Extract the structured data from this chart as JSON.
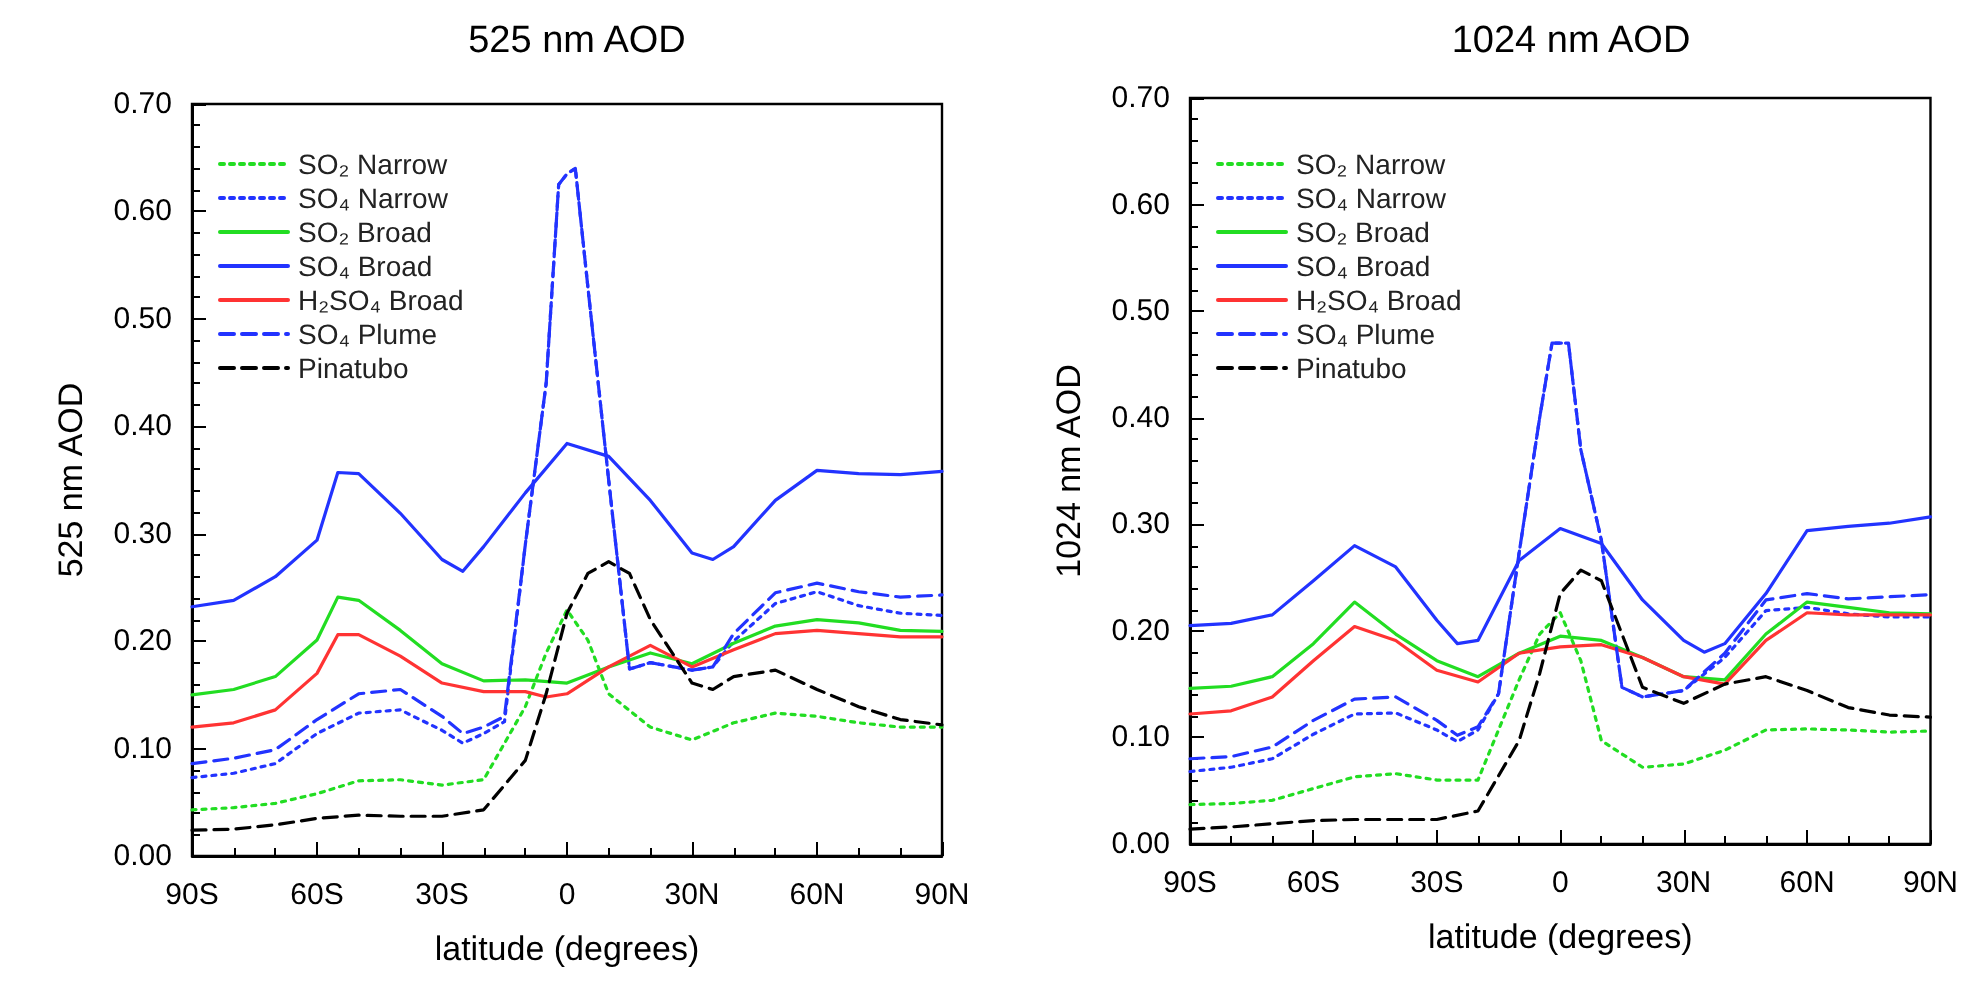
{
  "chart_data": [
    {
      "type": "line",
      "title": "525 nm AOD",
      "xlabel": "latitude (degrees)",
      "ylabel": "525 nm AOD",
      "xlim": [
        -90,
        90
      ],
      "xticks": [
        {
          "value": -90,
          "label": "90S"
        },
        {
          "value": -60,
          "label": "60S"
        },
        {
          "value": -30,
          "label": "30S"
        },
        {
          "value": 0,
          "label": "0"
        },
        {
          "value": 30,
          "label": "30N"
        },
        {
          "value": 60,
          "label": "60N"
        },
        {
          "value": 90,
          "label": "90N"
        }
      ],
      "ylim": [
        0,
        0.7
      ],
      "yticks": [
        {
          "value": 0,
          "label": "0.00"
        },
        {
          "value": 0.1,
          "label": "0.10"
        },
        {
          "value": 0.2,
          "label": "0.20"
        },
        {
          "value": 0.3,
          "label": "0.30"
        },
        {
          "value": 0.4,
          "label": "0.40"
        },
        {
          "value": 0.5,
          "label": "0.50"
        },
        {
          "value": 0.6,
          "label": "0.60"
        },
        {
          "value": 0.7,
          "label": "0.70"
        }
      ],
      "grid": false,
      "legend": "top left",
      "marker": "none",
      "series": [
        {
          "name": "SO₂ Narrow",
          "color": "#22dd22",
          "line_style": "dotted",
          "x": [
            -90,
            -80,
            -70,
            -60,
            -50,
            -40,
            -30,
            -20,
            -10,
            -5,
            0,
            5,
            10,
            20,
            30,
            40,
            50,
            60,
            70,
            80,
            90
          ],
          "values": [
            0.043,
            0.045,
            0.049,
            0.058,
            0.07,
            0.071,
            0.066,
            0.071,
            0.139,
            0.189,
            0.229,
            0.201,
            0.151,
            0.12,
            0.108,
            0.124,
            0.133,
            0.13,
            0.124,
            0.12,
            0.12
          ]
        },
        {
          "name": "SO₄ Narrow",
          "color": "#2233ff",
          "line_style": "dotted",
          "x": [
            -90,
            -80,
            -70,
            -60,
            -50,
            -40,
            -30,
            -25,
            -20,
            -15,
            -10,
            -5,
            -2,
            0,
            2,
            5,
            10,
            15,
            20,
            30,
            35,
            40,
            50,
            60,
            70,
            80,
            90
          ],
          "values": [
            0.073,
            0.077,
            0.086,
            0.114,
            0.133,
            0.136,
            0.117,
            0.105,
            0.114,
            0.125,
            0.29,
            0.44,
            0.625,
            0.635,
            0.64,
            0.53,
            0.35,
            0.174,
            0.18,
            0.173,
            0.176,
            0.2,
            0.235,
            0.246,
            0.233,
            0.226,
            0.224
          ]
        },
        {
          "name": "SO₂ Broad",
          "color": "#22dd22",
          "line_style": "solid",
          "x": [
            -90,
            -80,
            -70,
            -60,
            -55,
            -50,
            -40,
            -30,
            -20,
            -10,
            0,
            10,
            20,
            30,
            40,
            50,
            60,
            70,
            80,
            90
          ],
          "values": [
            0.15,
            0.155,
            0.167,
            0.201,
            0.241,
            0.238,
            0.21,
            0.179,
            0.163,
            0.164,
            0.161,
            0.176,
            0.189,
            0.179,
            0.198,
            0.214,
            0.22,
            0.217,
            0.21,
            0.209
          ]
        },
        {
          "name": "SO₄ Broad",
          "color": "#2233ff",
          "line_style": "solid",
          "x": [
            -90,
            -80,
            -70,
            -60,
            -55,
            -50,
            -40,
            -30,
            -25,
            -20,
            -10,
            0,
            10,
            20,
            30,
            35,
            40,
            50,
            60,
            70,
            80,
            90
          ],
          "values": [
            0.232,
            0.238,
            0.26,
            0.294,
            0.357,
            0.356,
            0.319,
            0.276,
            0.265,
            0.288,
            0.338,
            0.384,
            0.372,
            0.331,
            0.282,
            0.276,
            0.288,
            0.331,
            0.359,
            0.356,
            0.355,
            0.358
          ]
        },
        {
          "name": "H₂SO₄ Broad",
          "color": "#ff3333",
          "line_style": "solid",
          "x": [
            -90,
            -80,
            -70,
            -60,
            -55,
            -50,
            -40,
            -30,
            -20,
            -10,
            -5,
            0,
            10,
            20,
            30,
            40,
            50,
            60,
            70,
            80,
            90
          ],
          "values": [
            0.12,
            0.124,
            0.136,
            0.17,
            0.206,
            0.206,
            0.186,
            0.161,
            0.153,
            0.153,
            0.148,
            0.151,
            0.176,
            0.196,
            0.176,
            0.192,
            0.207,
            0.21,
            0.207,
            0.204,
            0.204
          ]
        },
        {
          "name": "SO₄ Plume",
          "color": "#2233ff",
          "line_style": "dashed",
          "x": [
            -90,
            -80,
            -70,
            -60,
            -50,
            -40,
            -30,
            -25,
            -20,
            -15,
            -10,
            -5,
            -2,
            0,
            2,
            5,
            10,
            15,
            20,
            30,
            35,
            40,
            50,
            60,
            70,
            80,
            90
          ],
          "values": [
            0.086,
            0.091,
            0.099,
            0.127,
            0.151,
            0.155,
            0.13,
            0.114,
            0.12,
            0.13,
            0.29,
            0.44,
            0.625,
            0.635,
            0.64,
            0.53,
            0.35,
            0.174,
            0.18,
            0.173,
            0.176,
            0.207,
            0.245,
            0.254,
            0.246,
            0.241,
            0.243
          ]
        },
        {
          "name": "Pinatubo",
          "color": "#000000",
          "line_style": "dashed",
          "x": [
            -90,
            -80,
            -70,
            -60,
            -50,
            -40,
            -30,
            -20,
            -10,
            -5,
            0,
            5,
            10,
            15,
            20,
            30,
            35,
            40,
            50,
            60,
            70,
            80,
            90
          ],
          "values": [
            0.024,
            0.025,
            0.029,
            0.035,
            0.038,
            0.037,
            0.037,
            0.043,
            0.089,
            0.151,
            0.226,
            0.263,
            0.274,
            0.263,
            0.22,
            0.161,
            0.155,
            0.167,
            0.173,
            0.155,
            0.139,
            0.127,
            0.122
          ]
        }
      ]
    },
    {
      "type": "line",
      "title": "1024 nm AOD",
      "xlabel": "latitude (degrees)",
      "ylabel": "1024 nm AOD",
      "xlim": [
        -90,
        90
      ],
      "xticks": [
        {
          "value": -90,
          "label": "90S"
        },
        {
          "value": -60,
          "label": "60S"
        },
        {
          "value": -30,
          "label": "30S"
        },
        {
          "value": 0,
          "label": "0"
        },
        {
          "value": 30,
          "label": "30N"
        },
        {
          "value": 60,
          "label": "60N"
        },
        {
          "value": 90,
          "label": "90N"
        }
      ],
      "ylim": [
        0,
        0.7
      ],
      "yticks": [
        {
          "value": 0,
          "label": "0.00"
        },
        {
          "value": 0.1,
          "label": "0.10"
        },
        {
          "value": 0.2,
          "label": "0.20"
        },
        {
          "value": 0.3,
          "label": "0.30"
        },
        {
          "value": 0.4,
          "label": "0.40"
        },
        {
          "value": 0.5,
          "label": "0.50"
        },
        {
          "value": 0.6,
          "label": "0.60"
        },
        {
          "value": 0.7,
          "label": "0.70"
        }
      ],
      "grid": false,
      "legend": "top left",
      "marker": "none",
      "series": [
        {
          "name": "SO₂ Narrow",
          "color": "#22dd22",
          "line_style": "dotted",
          "x": [
            -90,
            -80,
            -70,
            -60,
            -50,
            -40,
            -30,
            -20,
            -10,
            -5,
            0,
            5,
            10,
            20,
            30,
            40,
            50,
            60,
            70,
            80,
            90
          ],
          "values": [
            0.037,
            0.038,
            0.041,
            0.052,
            0.063,
            0.066,
            0.06,
            0.06,
            0.154,
            0.197,
            0.217,
            0.172,
            0.097,
            0.072,
            0.075,
            0.088,
            0.107,
            0.108,
            0.107,
            0.105,
            0.106
          ]
        },
        {
          "name": "SO₄ Narrow",
          "color": "#2233ff",
          "line_style": "dotted",
          "x": [
            -90,
            -80,
            -70,
            -60,
            -50,
            -40,
            -30,
            -25,
            -20,
            -15,
            -10,
            -5,
            -2,
            0,
            2,
            5,
            10,
            15,
            20,
            30,
            40,
            50,
            60,
            70,
            80,
            90
          ],
          "values": [
            0.068,
            0.072,
            0.08,
            0.103,
            0.122,
            0.123,
            0.107,
            0.096,
            0.107,
            0.141,
            0.273,
            0.4,
            0.47,
            0.47,
            0.47,
            0.37,
            0.285,
            0.147,
            0.138,
            0.144,
            0.175,
            0.219,
            0.222,
            0.216,
            0.213,
            0.213
          ]
        },
        {
          "name": "SO₂ Broad",
          "color": "#22dd22",
          "line_style": "solid",
          "x": [
            -90,
            -80,
            -70,
            -60,
            -50,
            -40,
            -30,
            -20,
            -10,
            0,
            10,
            20,
            30,
            40,
            50,
            60,
            70,
            80,
            90
          ],
          "values": [
            0.146,
            0.148,
            0.157,
            0.188,
            0.227,
            0.197,
            0.172,
            0.157,
            0.179,
            0.195,
            0.191,
            0.175,
            0.157,
            0.154,
            0.197,
            0.227,
            0.222,
            0.217,
            0.216
          ]
        },
        {
          "name": "SO₄ Broad",
          "color": "#2233ff",
          "line_style": "solid",
          "x": [
            -90,
            -80,
            -70,
            -60,
            -50,
            -40,
            -30,
            -25,
            -20,
            -10,
            0,
            10,
            20,
            30,
            35,
            40,
            50,
            60,
            70,
            80,
            90
          ],
          "values": [
            0.205,
            0.207,
            0.215,
            0.247,
            0.28,
            0.26,
            0.21,
            0.188,
            0.191,
            0.266,
            0.296,
            0.282,
            0.229,
            0.191,
            0.18,
            0.188,
            0.235,
            0.294,
            0.298,
            0.301,
            0.307
          ]
        },
        {
          "name": "H₂SO₄ Broad",
          "color": "#ff3333",
          "line_style": "solid",
          "x": [
            -90,
            -80,
            -70,
            -60,
            -50,
            -40,
            -30,
            -20,
            -10,
            0,
            10,
            20,
            30,
            40,
            50,
            60,
            70,
            80,
            90
          ],
          "values": [
            0.122,
            0.125,
            0.138,
            0.172,
            0.204,
            0.191,
            0.163,
            0.152,
            0.179,
            0.185,
            0.187,
            0.175,
            0.157,
            0.15,
            0.191,
            0.217,
            0.215,
            0.215,
            0.215
          ]
        },
        {
          "name": "SO₄ Plume",
          "color": "#2233ff",
          "line_style": "dashed",
          "x": [
            -90,
            -80,
            -70,
            -60,
            -50,
            -40,
            -30,
            -25,
            -20,
            -15,
            -10,
            -5,
            -2,
            0,
            2,
            5,
            10,
            15,
            20,
            30,
            40,
            50,
            60,
            70,
            80,
            90
          ],
          "values": [
            0.08,
            0.082,
            0.091,
            0.116,
            0.136,
            0.138,
            0.116,
            0.102,
            0.11,
            0.141,
            0.273,
            0.4,
            0.47,
            0.47,
            0.47,
            0.37,
            0.285,
            0.147,
            0.138,
            0.144,
            0.179,
            0.229,
            0.235,
            0.23,
            0.232,
            0.234
          ]
        },
        {
          "name": "Pinatubo",
          "color": "#000000",
          "line_style": "dashed",
          "x": [
            -90,
            -80,
            -70,
            -60,
            -50,
            -40,
            -30,
            -20,
            -10,
            -5,
            0,
            5,
            10,
            15,
            20,
            30,
            40,
            50,
            60,
            70,
            80,
            90
          ],
          "values": [
            0.014,
            0.016,
            0.019,
            0.022,
            0.023,
            0.023,
            0.023,
            0.031,
            0.097,
            0.16,
            0.235,
            0.257,
            0.247,
            0.197,
            0.147,
            0.132,
            0.15,
            0.157,
            0.144,
            0.128,
            0.121,
            0.119
          ]
        }
      ]
    }
  ]
}
